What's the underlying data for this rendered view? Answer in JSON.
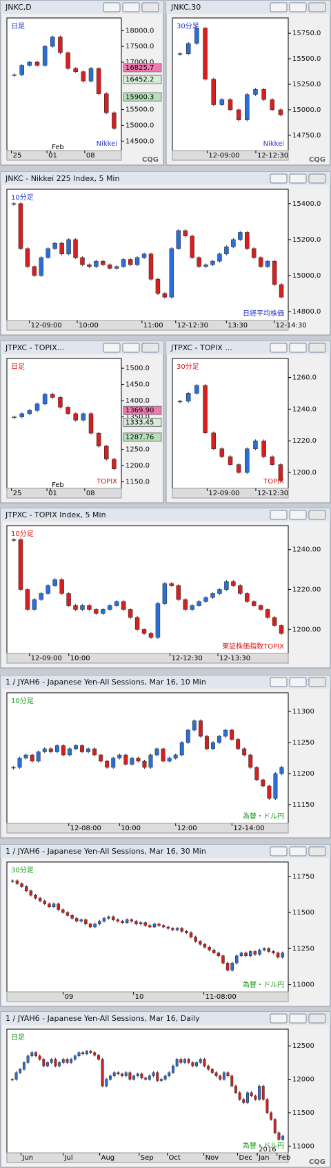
{
  "windows": [
    {
      "title": "JNKC,D",
      "period_label": "日足",
      "label_color": "#2233cc",
      "source_label": "Nikkei",
      "logo": "CQG",
      "ylim": [
        14200,
        18400
      ],
      "yticks": [
        {
          "value": 18000,
          "label": "18000.0"
        },
        {
          "value": 17500,
          "label": "17500.0"
        },
        {
          "value": 17000,
          "label": "17000.0"
        },
        {
          "value": 15500,
          "label": "15500.0"
        },
        {
          "value": 15000,
          "label": "15000.0"
        },
        {
          "value": 14500,
          "label": "14500.0"
        }
      ],
      "price_tags": [
        {
          "value": 16825.7,
          "color": "#f07ab0"
        },
        {
          "value": 16452.2,
          "color": "#d8ead8"
        },
        {
          "value": 15900.3,
          "color": "#b8e0b8"
        }
      ],
      "x_labels": [
        "25",
        "01",
        "Feb",
        "08"
      ],
      "closes": [
        16600,
        16900,
        17000,
        16900,
        17500,
        17800,
        17300,
        16800,
        16700,
        16400,
        16800,
        16000,
        15400,
        14900
      ]
    },
    {
      "title": "JNKC,30",
      "period_label": "30分足",
      "label_color": "#2233cc",
      "source_label": "Nikkei",
      "logo": "CQG",
      "ylim": [
        14600,
        15900
      ],
      "yticks": [
        {
          "value": 15750,
          "label": "15750.0"
        },
        {
          "value": 15500,
          "label": "15500.0"
        },
        {
          "value": 15250,
          "label": "15250.0"
        },
        {
          "value": 15000,
          "label": "15000.0"
        },
        {
          "value": 14750,
          "label": "14750.0"
        }
      ],
      "x_labels": [
        "12-09:00",
        "12-12:30"
      ],
      "closes": [
        15550,
        15650,
        15800,
        15300,
        15050,
        15100,
        15000,
        14900,
        15150,
        15200,
        15100,
        15000,
        14950
      ]
    },
    {
      "title": "JNKC - Nikkei 225 Index, 5 Min",
      "period_label": "10分足",
      "label_color": "#2233cc",
      "source_label": "日経平均株価",
      "ylim": [
        14750,
        15480
      ],
      "yticks": [
        {
          "value": 15400,
          "label": "15400.0"
        },
        {
          "value": 15200,
          "label": "15200.0"
        },
        {
          "value": 15000,
          "label": "15000.0"
        },
        {
          "value": 14800,
          "label": "14800.0"
        }
      ],
      "x_labels": [
        "12-09:00",
        "10:00",
        "11:00",
        "12-12:30",
        "13:30",
        "12-14:30"
      ],
      "closes": [
        15400,
        15150,
        15050,
        15000,
        15100,
        15150,
        15180,
        15120,
        15200,
        15100,
        15060,
        15050,
        15080,
        15060,
        15040,
        15050,
        15090,
        15060,
        15100,
        15120,
        14980,
        14900,
        14880,
        15150,
        15250,
        15220,
        15100,
        15050,
        15060,
        15080,
        15120,
        15160,
        15200,
        15240,
        15150,
        15100,
        15050,
        15080,
        14950,
        14880
      ]
    },
    {
      "title": "JTPXC - TOPIX...",
      "period_label": "日足",
      "label_color": "#dd1111",
      "source_label": "TOPIX",
      "ylim": [
        1130,
        1530
      ],
      "yticks": [
        {
          "value": 1500,
          "label": "1500.0"
        },
        {
          "value": 1450,
          "label": "1450.0"
        },
        {
          "value": 1400,
          "label": "1400.0"
        },
        {
          "value": 1350,
          "label": "1350.0"
        },
        {
          "value": 1250,
          "label": "1250.0"
        },
        {
          "value": 1200,
          "label": "1200.0"
        },
        {
          "value": 1150,
          "label": "1150.0"
        }
      ],
      "price_tags": [
        {
          "value": 1369.9,
          "label": "1369.90",
          "color": "#f07ab0"
        },
        {
          "value": 1333.45,
          "label": "1333.45",
          "color": "#d8ead8"
        },
        {
          "value": 1287.76,
          "label": "1287.76",
          "color": "#b8e0b8"
        }
      ],
      "x_labels": [
        "25",
        "01",
        "Feb",
        "08"
      ],
      "closes": [
        1350,
        1360,
        1370,
        1390,
        1420,
        1410,
        1380,
        1360,
        1340,
        1360,
        1300,
        1260,
        1220,
        1190
      ]
    },
    {
      "title": "JTPXC - TOPIX ...",
      "period_label": "30分足",
      "label_color": "#dd1111",
      "source_label": "TOPIX",
      "ylim": [
        1190,
        1272
      ],
      "yticks": [
        {
          "value": 1260,
          "label": "1260.0"
        },
        {
          "value": 1240,
          "label": "1240.0"
        },
        {
          "value": 1220,
          "label": "1220.0"
        },
        {
          "value": 1200,
          "label": "1200.0"
        }
      ],
      "x_labels": [
        "12-09:00",
        "12-12:30"
      ],
      "closes": [
        1245,
        1250,
        1255,
        1225,
        1215,
        1210,
        1205,
        1200,
        1215,
        1220,
        1210,
        1205,
        1195
      ]
    },
    {
      "title": "JTPXC - TOPIX Index, 5 Min",
      "period_label": "10分足",
      "label_color": "#dd1111",
      "source_label": "東証株価指数TOPIX",
      "ylim": [
        1188,
        1252
      ],
      "yticks": [
        {
          "value": 1240,
          "label": "1240.00"
        },
        {
          "value": 1220,
          "label": "1220.00"
        },
        {
          "value": 1200,
          "label": "1200.00"
        }
      ],
      "x_labels": [
        "12-09:00",
        "10:00",
        "12-12:30",
        "12-13:30"
      ],
      "closes": [
        1245,
        1220,
        1210,
        1215,
        1218,
        1222,
        1225,
        1218,
        1212,
        1210,
        1212,
        1210,
        1208,
        1210,
        1212,
        1214,
        1210,
        1206,
        1200,
        1198,
        1196,
        1213,
        1223,
        1222,
        1215,
        1210,
        1212,
        1214,
        1216,
        1218,
        1220,
        1224,
        1222,
        1218,
        1214,
        1212,
        1210,
        1206,
        1202,
        1198
      ]
    },
    {
      "title": "1 / JYAH6 - Japanese Yen-All Sessions, Mar 16, 10 Min",
      "period_label": "10分足",
      "label_color": "#119911",
      "source_label": "為替・ドル円",
      "ylim": [
        11120,
        11330
      ],
      "yticks": [
        11300,
        11250,
        11200,
        11150
      ],
      "x_labels": [
        "12-08:00",
        "10:00",
        "12:00",
        "12-14:00"
      ],
      "closes": [
        11210,
        11225,
        11230,
        11220,
        11235,
        11240,
        11235,
        11245,
        11230,
        11240,
        11245,
        11235,
        11240,
        11230,
        11220,
        11210,
        11225,
        11230,
        11215,
        11225,
        11220,
        11210,
        11230,
        11240,
        11220,
        11225,
        11230,
        11250,
        11270,
        11285,
        11260,
        11240,
        11250,
        11260,
        11270,
        11255,
        11240,
        11230,
        11210,
        11190,
        11180,
        11160,
        11200,
        11210
      ]
    },
    {
      "title": "1 / JYAH6 - Japanese Yen-All Sessions, Mar 16, 30 Min",
      "period_label": "30分足",
      "label_color": "#119911",
      "source_label": "為替・ドル円",
      "ylim": [
        10950,
        11850
      ],
      "yticks": [
        11750,
        11500,
        11250,
        11000
      ],
      "x_labels": [
        "09",
        "10",
        "11-08:00"
      ],
      "closes": [
        11720,
        11700,
        11680,
        11650,
        11620,
        11600,
        11580,
        11560,
        11540,
        11560,
        11520,
        11500,
        11480,
        11460,
        11440,
        11450,
        11420,
        11400,
        11420,
        11440,
        11460,
        11470,
        11450,
        11440,
        11430,
        11450,
        11440,
        11420,
        11430,
        11410,
        11400,
        11420,
        11410,
        11400,
        11390,
        11380,
        11390,
        11370,
        11360,
        11330,
        11300,
        11280,
        11260,
        11240,
        11220,
        11200,
        11150,
        11100,
        11150,
        11200,
        11220,
        11200,
        11230,
        11210,
        11240,
        11250,
        11230,
        11220,
        11190,
        11220
      ]
    },
    {
      "title": "1 / JYAH6 - Japanese Yen-All Sessions, Mar 16, Daily",
      "period_label": "日足",
      "label_color": "#119911",
      "source_label": "為替・ドル円",
      "logo": "CQG",
      "ylim": [
        10900,
        12750
      ],
      "yticks": [
        12500,
        12000,
        11500,
        11000
      ],
      "x_labels": [
        "Jun",
        "Jul",
        "Aug",
        "Sep",
        "Oct",
        "Nov",
        "Dec",
        "Jan",
        "Feb",
        "2016"
      ],
      "closes": [
        12000,
        12100,
        12150,
        12250,
        12350,
        12400,
        12350,
        12300,
        12200,
        12250,
        12300,
        12200,
        12250,
        12300,
        12250,
        12300,
        12350,
        12400,
        12380,
        12420,
        12400,
        12360,
        12300,
        11900,
        12000,
        12050,
        12100,
        12080,
        12050,
        12100,
        12000,
        12050,
        12080,
        12020,
        12000,
        12050,
        12100,
        11980,
        12000,
        12050,
        12100,
        12200,
        12300,
        12250,
        12300,
        12250,
        12200,
        12250,
        12300,
        12200,
        12150,
        12100,
        12050,
        12000,
        12100,
        12050,
        11900,
        11800,
        11700,
        11650,
        11800,
        11750,
        11700,
        11900,
        11700,
        11500,
        11400,
        11200,
        11100,
        11150
      ]
    }
  ]
}
